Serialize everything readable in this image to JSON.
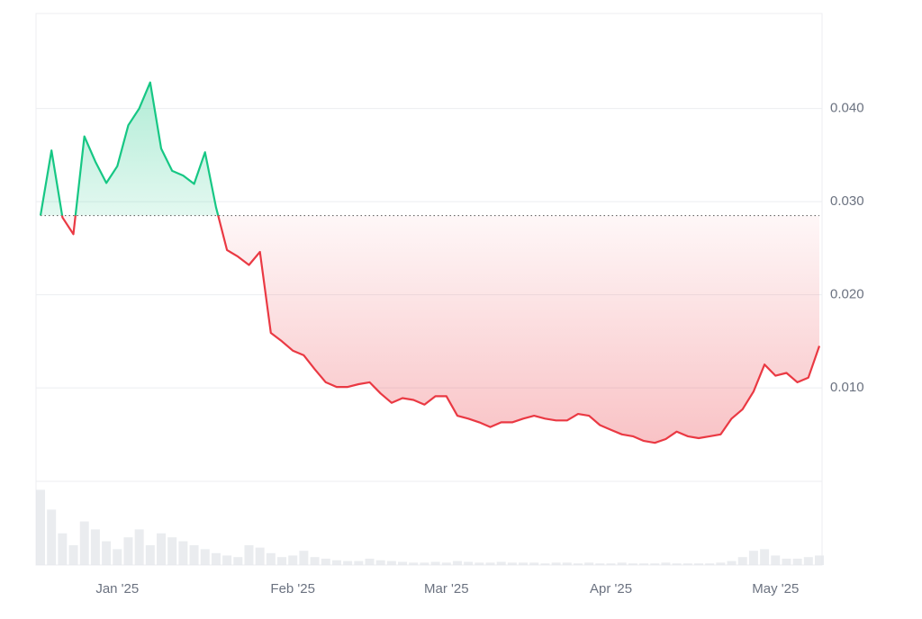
{
  "chart_data": {
    "type": "area-line",
    "categories": [
      null,
      null,
      null,
      null,
      null,
      null,
      null,
      "Jan '25",
      null,
      null,
      null,
      null,
      null,
      null,
      null,
      null,
      null,
      null,
      null,
      null,
      null,
      null,
      null,
      "Feb '25",
      null,
      null,
      null,
      null,
      null,
      null,
      null,
      null,
      null,
      null,
      null,
      null,
      null,
      "Mar '25",
      null,
      null,
      null,
      null,
      null,
      null,
      null,
      null,
      null,
      null,
      null,
      null,
      null,
      null,
      "Apr '25",
      null,
      null,
      null,
      null,
      null,
      null,
      null,
      null,
      null,
      null,
      null,
      null,
      null,
      null,
      "May '25",
      null,
      null,
      null,
      null
    ],
    "values": [
      0.0285,
      0.0355,
      0.0283,
      0.0265,
      0.037,
      0.0343,
      0.032,
      0.0338,
      0.0382,
      0.04,
      0.0428,
      0.0357,
      0.0333,
      0.0328,
      0.0319,
      0.0353,
      0.0294,
      0.0248,
      0.0241,
      0.0232,
      0.0246,
      0.0159,
      0.015,
      0.014,
      0.0135,
      0.012,
      0.0106,
      0.0101,
      0.0101,
      0.0104,
      0.0106,
      0.0094,
      0.0084,
      0.0089,
      0.0087,
      0.0082,
      0.0091,
      0.0091,
      0.007,
      0.0067,
      0.0063,
      0.0058,
      0.0063,
      0.0063,
      0.0067,
      0.007,
      0.0067,
      0.0065,
      0.0065,
      0.0072,
      0.007,
      0.006,
      0.0055,
      0.005,
      0.0048,
      0.0043,
      0.0041,
      0.0045,
      0.0053,
      0.0048,
      0.0046,
      0.0048,
      0.005,
      0.0067,
      0.0077,
      0.0096,
      0.0125,
      0.0113,
      0.0116,
      0.0106,
      0.0111,
      0.0145
    ],
    "reference_value": 0.0285,
    "up_color": "#16c784",
    "down_color": "#ea3943",
    "ylim": [
      0,
      0.0502
    ],
    "yticks": [
      {
        "value": 0.01,
        "label": "0.010"
      },
      {
        "value": 0.02,
        "label": "0.020"
      },
      {
        "value": 0.03,
        "label": "0.030"
      },
      {
        "value": 0.04,
        "label": "0.040"
      }
    ],
    "grid": true,
    "volume": {
      "color": "#e5e7eb",
      "ylim": [
        0,
        100
      ],
      "values": [
        95,
        70,
        40,
        25,
        55,
        45,
        30,
        20,
        35,
        45,
        25,
        40,
        35,
        30,
        25,
        20,
        15,
        12,
        10,
        25,
        22,
        15,
        10,
        12,
        18,
        10,
        8,
        6,
        5,
        5,
        8,
        6,
        5,
        4,
        3,
        3,
        4,
        3,
        5,
        4,
        3,
        3,
        4,
        3,
        3,
        3,
        2,
        3,
        3,
        2,
        3,
        2,
        2,
        3,
        2,
        2,
        2,
        3,
        2,
        2,
        2,
        2,
        3,
        5,
        10,
        18,
        20,
        12,
        8,
        8,
        10,
        12
      ]
    }
  }
}
